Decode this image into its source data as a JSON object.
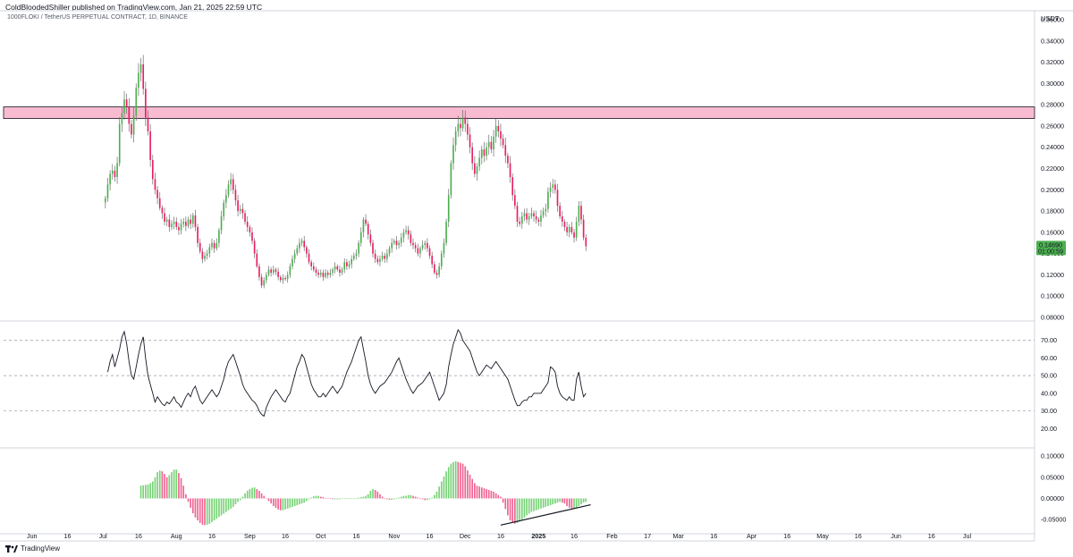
{
  "header": {
    "publish_line": "ColdBloodedShiller published on TradingView.com, Jan 21, 2025 22:59 UTC",
    "symbol_line": "1000FLOKI / TetherUS PERPETUAL CONTRACT, 1D, BINANCE",
    "currency": "USDT"
  },
  "footer": {
    "brand": "TradingView"
  },
  "colors": {
    "up": "#089981",
    "down": "#f23645",
    "candle_up": "#4caf50",
    "candle_down": "#e91e63",
    "hist_up": "#76d275",
    "hist_down": "#f06292",
    "zone": "#f8bbd0",
    "price_badge": "#4caf50"
  },
  "chart_data": [
    {
      "type": "candlestick",
      "name": "price",
      "ylim": [
        0.08,
        0.36
      ],
      "y_ticks": [
        "0.36000",
        "0.34000",
        "0.32000",
        "0.30000",
        "0.28000",
        "0.26000",
        "0.24000",
        "0.22000",
        "0.20000",
        "0.18000",
        "0.16000",
        "0.14000",
        "0.12000",
        "0.10000",
        "0.08000"
      ],
      "last_price": "0.14690",
      "countdown": "01:00:59",
      "resistance_zone": [
        0.267,
        0.278
      ],
      "closes": [
        0.192,
        0.205,
        0.215,
        0.218,
        0.212,
        0.225,
        0.262,
        0.272,
        0.285,
        0.278,
        0.262,
        0.252,
        0.27,
        0.296,
        0.31,
        0.318,
        0.295,
        0.268,
        0.255,
        0.228,
        0.21,
        0.2,
        0.192,
        0.183,
        0.178,
        0.17,
        0.172,
        0.165,
        0.168,
        0.17,
        0.165,
        0.162,
        0.168,
        0.17,
        0.166,
        0.172,
        0.168,
        0.176,
        0.165,
        0.15,
        0.142,
        0.135,
        0.138,
        0.14,
        0.146,
        0.15,
        0.145,
        0.15,
        0.162,
        0.175,
        0.188,
        0.195,
        0.205,
        0.21,
        0.2,
        0.19,
        0.18,
        0.182,
        0.178,
        0.17,
        0.165,
        0.16,
        0.152,
        0.14,
        0.128,
        0.118,
        0.11,
        0.115,
        0.12,
        0.125,
        0.122,
        0.125,
        0.123,
        0.118,
        0.115,
        0.117,
        0.116,
        0.12,
        0.128,
        0.135,
        0.14,
        0.145,
        0.15,
        0.152,
        0.146,
        0.14,
        0.132,
        0.128,
        0.125,
        0.122,
        0.12,
        0.122,
        0.118,
        0.122,
        0.12,
        0.122,
        0.125,
        0.128,
        0.125,
        0.122,
        0.125,
        0.132,
        0.128,
        0.13,
        0.135,
        0.138,
        0.14,
        0.15,
        0.16,
        0.172,
        0.168,
        0.158,
        0.15,
        0.14,
        0.135,
        0.132,
        0.135,
        0.138,
        0.135,
        0.14,
        0.145,
        0.15,
        0.152,
        0.148,
        0.15,
        0.155,
        0.16,
        0.162,
        0.158,
        0.15,
        0.148,
        0.145,
        0.14,
        0.145,
        0.148,
        0.15,
        0.145,
        0.138,
        0.13,
        0.122,
        0.12,
        0.128,
        0.14,
        0.15,
        0.17,
        0.195,
        0.225,
        0.242,
        0.255,
        0.262,
        0.258,
        0.268,
        0.262,
        0.252,
        0.24,
        0.225,
        0.215,
        0.222,
        0.23,
        0.238,
        0.232,
        0.24,
        0.245,
        0.238,
        0.25,
        0.26,
        0.255,
        0.248,
        0.242,
        0.232,
        0.225,
        0.212,
        0.195,
        0.185,
        0.17,
        0.168,
        0.175,
        0.178,
        0.172,
        0.175,
        0.178,
        0.175,
        0.172,
        0.17,
        0.176,
        0.18,
        0.182,
        0.198,
        0.202,
        0.205,
        0.2,
        0.185,
        0.175,
        0.17,
        0.165,
        0.16,
        0.165,
        0.16,
        0.155,
        0.17,
        0.185,
        0.172,
        0.155,
        0.1469
      ],
      "time_axis": {
        "start": "2024-05-20",
        "end": "2025-07-28",
        "last_bar": "2025-01-21"
      },
      "x_ticks": [
        "Jun",
        "16",
        "Jul",
        "16",
        "Aug",
        "16",
        "Sep",
        "16",
        "Oct",
        "16",
        "Nov",
        "16",
        "Dec",
        "16",
        "2025",
        "16",
        "Feb",
        "17",
        "Mar",
        "16",
        "Apr",
        "16",
        "May",
        "16",
        "Jun",
        "16",
        "Jul"
      ]
    },
    {
      "type": "line",
      "name": "oscillator",
      "ylim": [
        10,
        80
      ],
      "y_ticks": [
        "70.00",
        "60.00",
        "50.00",
        "40.00",
        "30.00",
        "20.00"
      ],
      "bands": [
        70,
        50,
        30
      ],
      "values": [
        52,
        58,
        62,
        55,
        60,
        65,
        72,
        75,
        68,
        58,
        50,
        48,
        55,
        62,
        68,
        72,
        60,
        50,
        45,
        40,
        35,
        38,
        36,
        34,
        33,
        35,
        34,
        36,
        38,
        35,
        34,
        32,
        35,
        38,
        40,
        38,
        42,
        44,
        40,
        36,
        34,
        36,
        38,
        40,
        42,
        40,
        38,
        40,
        44,
        48,
        54,
        58,
        60,
        62,
        58,
        54,
        50,
        45,
        42,
        40,
        38,
        36,
        35,
        33,
        30,
        28,
        27,
        32,
        35,
        38,
        40,
        42,
        40,
        38,
        36,
        35,
        38,
        40,
        45,
        50,
        55,
        58,
        62,
        60,
        55,
        50,
        45,
        42,
        40,
        38,
        38,
        40,
        38,
        40,
        42,
        44,
        42,
        40,
        42,
        44,
        48,
        52,
        55,
        58,
        62,
        66,
        70,
        72,
        65,
        58,
        50,
        45,
        42,
        40,
        42,
        44,
        45,
        46,
        48,
        50,
        52,
        55,
        58,
        60,
        56,
        52,
        48,
        45,
        42,
        40,
        42,
        44,
        45,
        46,
        48,
        50,
        52,
        48,
        44,
        40,
        36,
        38,
        40,
        45,
        55,
        62,
        68,
        72,
        76,
        74,
        70,
        68,
        66,
        64,
        60,
        56,
        52,
        50,
        52,
        54,
        56,
        55,
        54,
        56,
        58,
        56,
        54,
        52,
        50,
        48,
        44,
        40,
        36,
        33,
        33,
        35,
        36,
        36,
        38,
        38,
        40,
        40,
        40,
        40,
        42,
        44,
        46,
        55,
        54,
        52,
        44,
        40,
        38,
        37,
        36,
        38,
        36,
        36,
        48,
        52,
        44,
        38,
        40
      ]
    },
    {
      "type": "bar",
      "name": "histogram",
      "ylim": [
        -0.075,
        0.115
      ],
      "y_ticks": [
        "0.10000",
        "0.05000",
        "0.00000",
        "-0.05000"
      ],
      "trendline": {
        "from": {
          "date": "2024-12-16",
          "value": -0.063
        },
        "to": {
          "date": "2025-01-23",
          "value": -0.015
        }
      },
      "values": [
        0.03,
        0.031,
        0.032,
        0.033,
        0.036,
        0.04,
        0.05,
        0.062,
        0.066,
        0.064,
        0.058,
        0.05,
        0.055,
        0.062,
        0.068,
        0.068,
        0.06,
        0.048,
        0.03,
        0.01,
        -0.008,
        -0.022,
        -0.035,
        -0.045,
        -0.052,
        -0.058,
        -0.062,
        -0.063,
        -0.062,
        -0.06,
        -0.056,
        -0.052,
        -0.048,
        -0.044,
        -0.04,
        -0.036,
        -0.032,
        -0.028,
        -0.024,
        -0.02,
        -0.014,
        -0.008,
        -0.004,
        0.004,
        0.012,
        0.018,
        0.022,
        0.025,
        0.026,
        0.022,
        0.018,
        0.012,
        0.006,
        0.0,
        -0.006,
        -0.012,
        -0.018,
        -0.022,
        -0.026,
        -0.028,
        -0.028,
        -0.026,
        -0.024,
        -0.022,
        -0.02,
        -0.018,
        -0.016,
        -0.014,
        -0.012,
        -0.01,
        -0.006,
        -0.002,
        0.002,
        0.005,
        0.006,
        0.006,
        0.004,
        0.003,
        0.001,
        0.0,
        -0.001,
        -0.002,
        -0.002,
        -0.002,
        -0.002,
        -0.001,
        -0.001,
        0.0,
        0.0,
        0.0,
        0.001,
        0.001,
        0.002,
        0.003,
        0.004,
        0.006,
        0.01,
        0.018,
        0.022,
        0.02,
        0.016,
        0.01,
        0.004,
        0.0,
        -0.002,
        -0.003,
        -0.003,
        -0.002,
        0.0,
        0.002,
        0.004,
        0.006,
        0.006,
        0.008,
        0.008,
        0.006,
        0.004,
        0.002,
        0.0,
        -0.002,
        -0.004,
        -0.004,
        -0.002,
        0.002,
        0.008,
        0.016,
        0.028,
        0.04,
        0.052,
        0.064,
        0.074,
        0.082,
        0.086,
        0.088,
        0.086,
        0.084,
        0.082,
        0.076,
        0.066,
        0.056,
        0.046,
        0.036,
        0.03,
        0.028,
        0.026,
        0.024,
        0.022,
        0.02,
        0.018,
        0.016,
        0.012,
        0.008,
        0.004,
        -0.01,
        -0.025,
        -0.04,
        -0.052,
        -0.058,
        -0.06,
        -0.058,
        -0.055,
        -0.05,
        -0.045,
        -0.04,
        -0.036,
        -0.032,
        -0.03,
        -0.028,
        -0.026,
        -0.024,
        -0.022,
        -0.02,
        -0.018,
        -0.016,
        -0.014,
        -0.012,
        -0.01,
        -0.008,
        -0.01,
        -0.012,
        -0.018,
        -0.022,
        -0.024,
        -0.024,
        -0.022,
        -0.018,
        -0.014,
        -0.01,
        -0.008
      ]
    }
  ]
}
